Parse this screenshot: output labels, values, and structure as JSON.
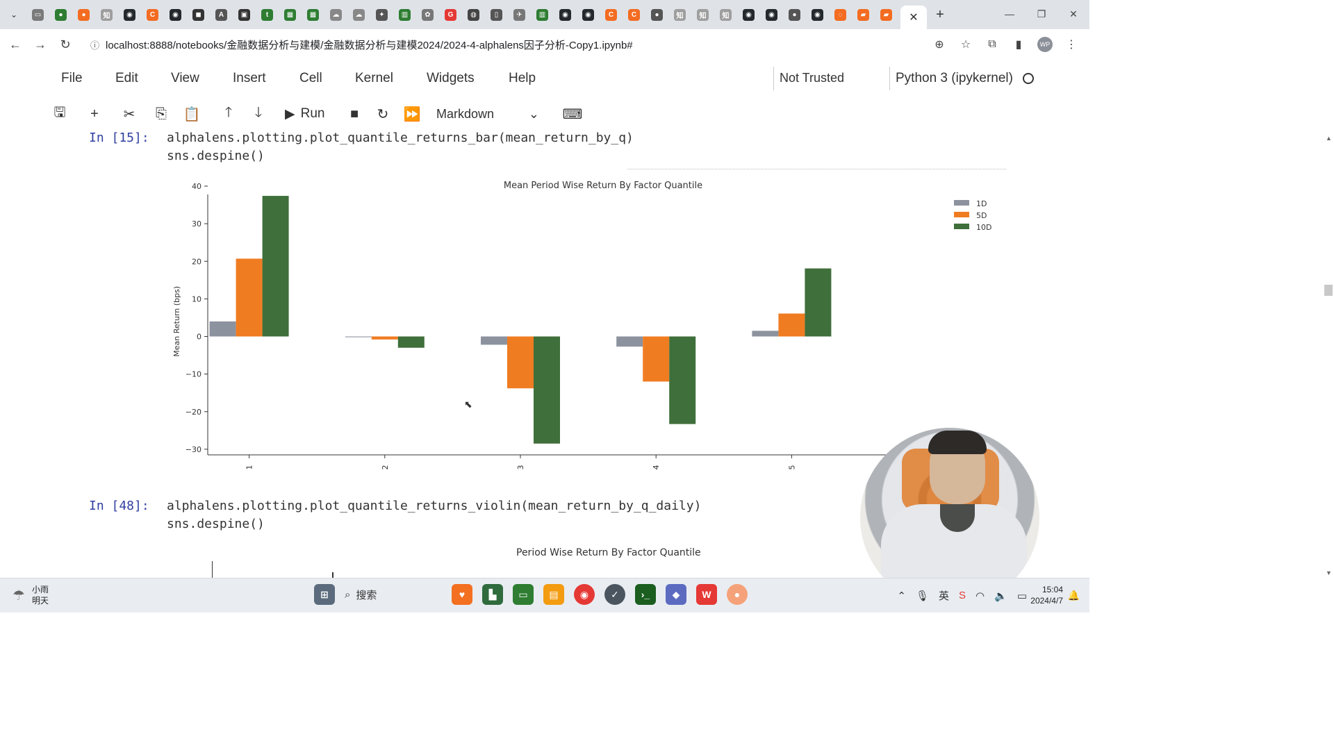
{
  "browser": {
    "tab_favicons": [
      {
        "name": "calendar-icon",
        "color": "#7a7a7a",
        "glyph": "▭"
      },
      {
        "name": "wechat-icon",
        "color": "#2e7d32",
        "glyph": "●"
      },
      {
        "name": "orange-app-icon",
        "color": "#f36c21",
        "glyph": "●"
      },
      {
        "name": "zhihu-icon",
        "color": "#9e9e9e",
        "glyph": "知"
      },
      {
        "name": "github-icon",
        "color": "#24292e",
        "glyph": "◉"
      },
      {
        "name": "c-icon",
        "color": "#f36c21",
        "glyph": "C"
      },
      {
        "name": "github-icon",
        "color": "#24292e",
        "glyph": "◉"
      },
      {
        "name": "notion-icon",
        "color": "#333333",
        "glyph": "◼"
      },
      {
        "name": "a-icon",
        "color": "#555555",
        "glyph": "A"
      },
      {
        "name": "media-icon",
        "color": "#333333",
        "glyph": "▣"
      },
      {
        "name": "tds-icon",
        "color": "#2e7d32",
        "glyph": "t"
      },
      {
        "name": "green-doc-icon",
        "color": "#2e7d32",
        "glyph": "▦"
      },
      {
        "name": "green-doc-icon",
        "color": "#2e7d32",
        "glyph": "▦"
      },
      {
        "name": "cloud-icon",
        "color": "#888888",
        "glyph": "☁"
      },
      {
        "name": "cloud-icon",
        "color": "#888888",
        "glyph": "☁"
      },
      {
        "name": "runner-icon",
        "color": "#555555",
        "glyph": "✦"
      },
      {
        "name": "book-icon",
        "color": "#2e7d32",
        "glyph": "▥"
      },
      {
        "name": "paw-icon",
        "color": "#777777",
        "glyph": "✿"
      },
      {
        "name": "google-icon",
        "color": "#e53935",
        "glyph": "G"
      },
      {
        "name": "globe-icon",
        "color": "#444444",
        "glyph": "◍"
      },
      {
        "name": "bracket-icon",
        "color": "#555555",
        "glyph": "▯"
      },
      {
        "name": "plane-icon",
        "color": "#777777",
        "glyph": "✈"
      },
      {
        "name": "book-icon",
        "color": "#2e7d32",
        "glyph": "▥"
      },
      {
        "name": "github-icon",
        "color": "#24292e",
        "glyph": "◉"
      },
      {
        "name": "github-icon",
        "color": "#24292e",
        "glyph": "◉"
      },
      {
        "name": "c-icon",
        "color": "#f36c21",
        "glyph": "C"
      },
      {
        "name": "c-icon",
        "color": "#f36c21",
        "glyph": "C"
      },
      {
        "name": "disc-icon",
        "color": "#555555",
        "glyph": "●"
      },
      {
        "name": "zhihu-icon",
        "color": "#9e9e9e",
        "glyph": "知"
      },
      {
        "name": "zhihu-icon",
        "color": "#9e9e9e",
        "glyph": "知"
      },
      {
        "name": "zhihu-icon",
        "color": "#9e9e9e",
        "glyph": "知"
      },
      {
        "name": "github-icon",
        "color": "#24292e",
        "glyph": "◉"
      },
      {
        "name": "github-icon",
        "color": "#24292e",
        "glyph": "◉"
      },
      {
        "name": "disc-icon",
        "color": "#555555",
        "glyph": "●"
      },
      {
        "name": "github-icon",
        "color": "#24292e",
        "glyph": "◉"
      },
      {
        "name": "jupyter-icon",
        "color": "#f36c21",
        "glyph": "◌"
      },
      {
        "name": "orange-book-icon",
        "color": "#f36c21",
        "glyph": "▰"
      },
      {
        "name": "orange-book-icon",
        "color": "#f36c21",
        "glyph": "▰"
      }
    ],
    "url": "localhost:8888/notebooks/金融数据分析与建模/金融数据分析与建模2024/2024-4-alphalens因子分析-Copy1.ipynb#"
  },
  "jupyter": {
    "menu": [
      "File",
      "Edit",
      "View",
      "Insert",
      "Cell",
      "Kernel",
      "Widgets",
      "Help"
    ],
    "trusted": "Not Trusted",
    "kernel": "Python 3 (ipykernel)",
    "run_label": "Run",
    "cell_type": "Markdown"
  },
  "cells": [
    {
      "prompt": "In  [15]:",
      "code": "alphalens.plotting.plot_quantile_returns_bar(mean_return_by_q)\nsns.despine()"
    },
    {
      "prompt": "In  [48]:",
      "code": "alphalens.plotting.plot_quantile_returns_violin(mean_return_by_q_daily)\nsns.despine()"
    }
  ],
  "chart_data": [
    {
      "type": "bar",
      "title": "Mean Period Wise Return By Factor Quantile",
      "xlabel": "",
      "ylabel": "Mean Return (bps)",
      "categories": [
        "1",
        "2",
        "3",
        "4",
        "5"
      ],
      "series": [
        {
          "name": "1D",
          "color": "#8c929e",
          "values": [
            4.0,
            -0.2,
            -2.2,
            -2.7,
            1.5
          ]
        },
        {
          "name": "5D",
          "color": "#f07c22",
          "values": [
            20.7,
            -0.8,
            -13.8,
            -12.0,
            6.1
          ]
        },
        {
          "name": "10D",
          "color": "#3f6f3a",
          "values": [
            37.4,
            -3.0,
            -28.5,
            -23.3,
            18.1
          ]
        }
      ],
      "ylim": [
        -31.5,
        40
      ],
      "yticks": [
        40,
        30,
        20,
        10,
        0,
        -10,
        -20,
        -30
      ],
      "legend": "top-right"
    },
    {
      "type": "violin",
      "title": "Period Wise Return By Factor Quantile"
    }
  ],
  "taskbar": {
    "weather_line1": "小雨",
    "weather_line2": "明天",
    "search": "搜索",
    "time": "15:04",
    "date": "2024/4/7"
  }
}
